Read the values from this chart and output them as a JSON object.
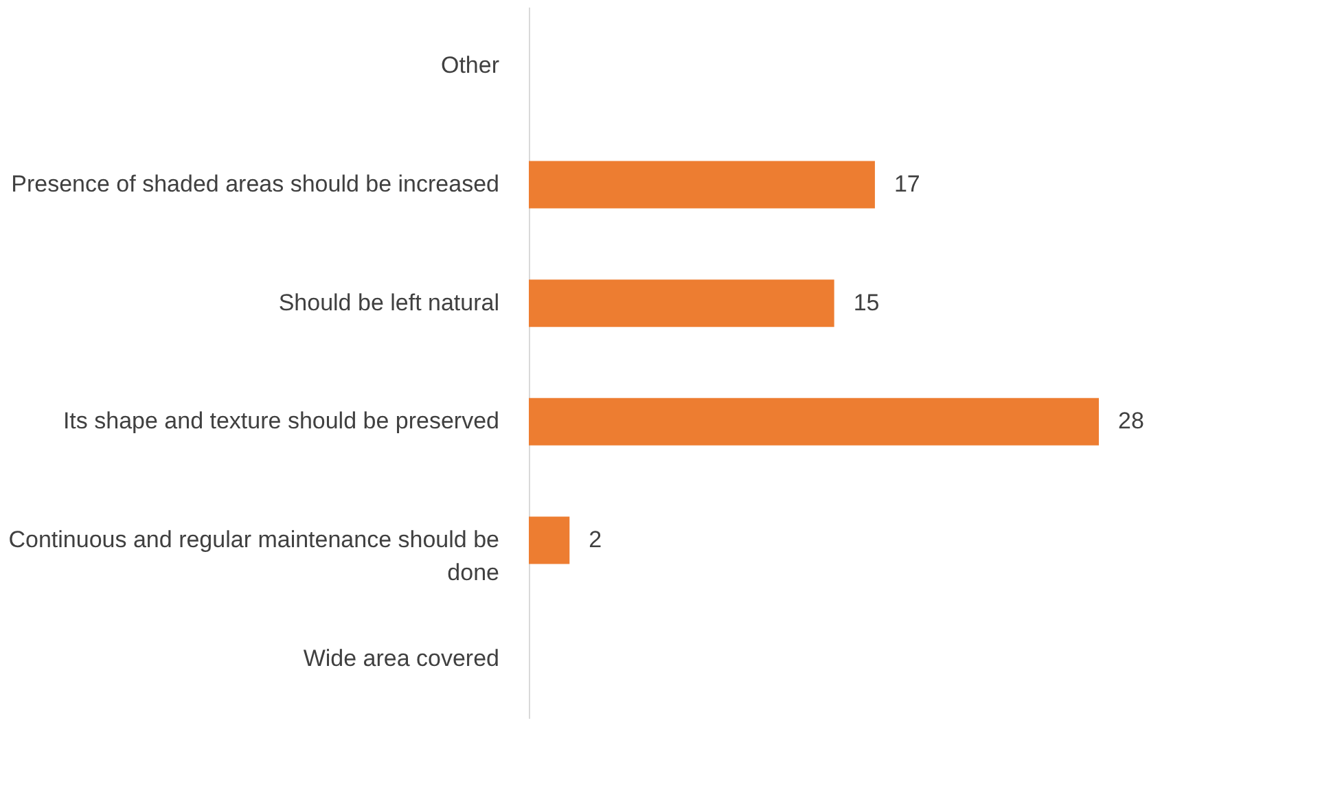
{
  "chart_data": {
    "type": "bar",
    "orientation": "horizontal",
    "categories": [
      "Other",
      "Presence of shaded areas should be increased",
      "Should be left natural",
      "Its shape and texture should be preserved",
      "Continuous and regular maintenance should be done",
      "Wide area covered"
    ],
    "values": [
      null,
      17,
      15,
      28,
      2,
      null
    ],
    "color": "#ed7d31",
    "data_labels": true
  }
}
